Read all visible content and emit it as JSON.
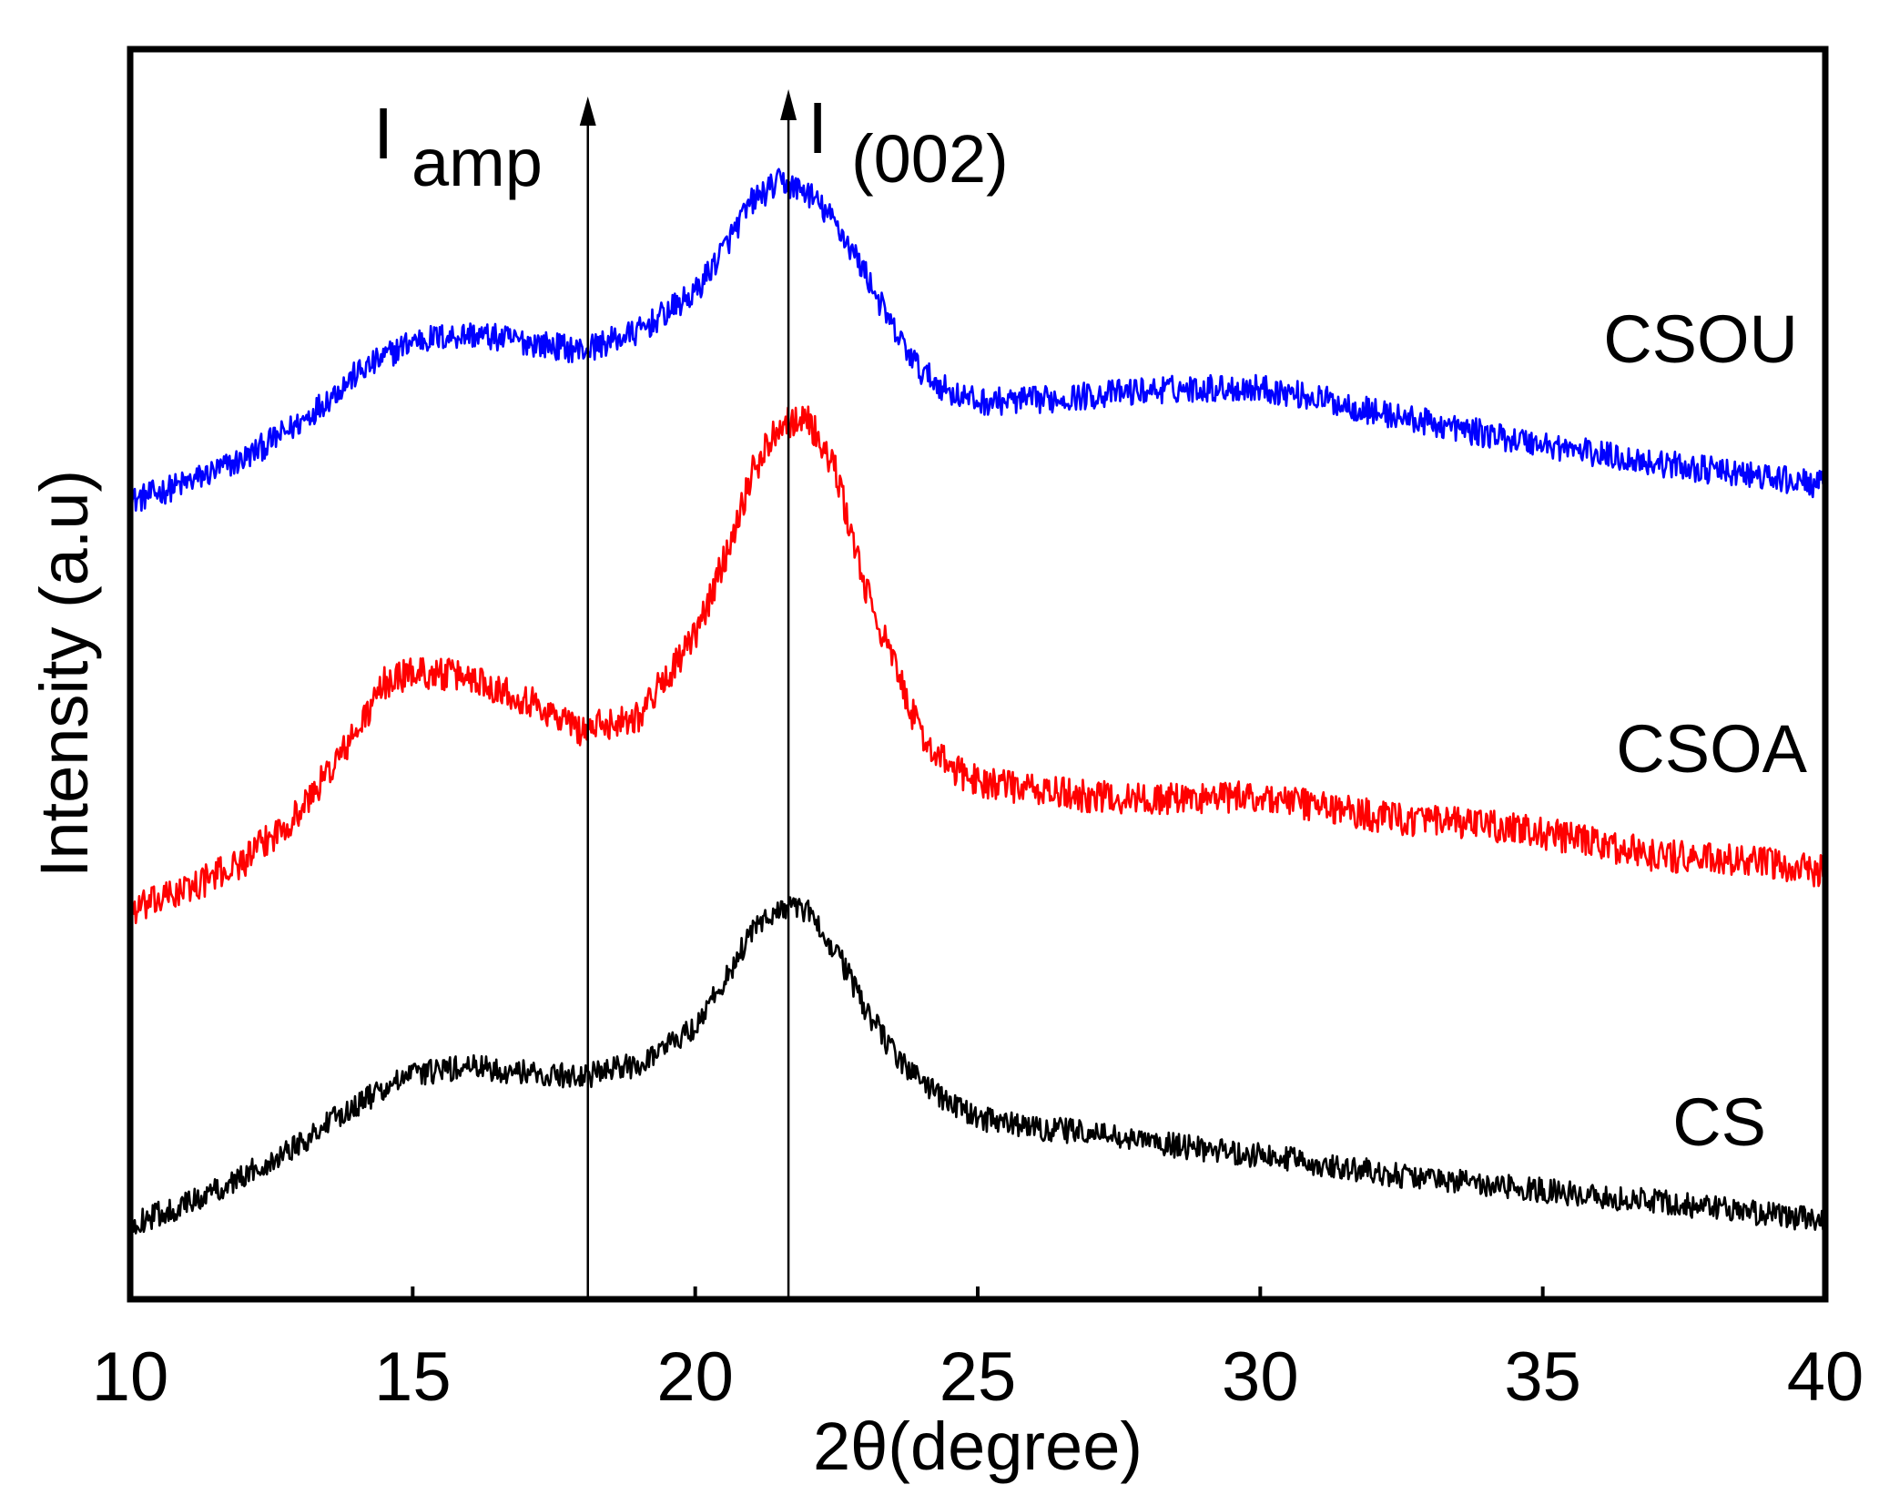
{
  "chart_data": {
    "type": "line",
    "title": "",
    "xlabel": "2θ(degree)",
    "ylabel": "Intensity (a.u)",
    "xlim": [
      10,
      40
    ],
    "ylim": [
      0,
      100
    ],
    "xticks": [
      10,
      15,
      20,
      25,
      30,
      35,
      40
    ],
    "xtick_labels": [
      "10",
      "15",
      "20",
      "25",
      "30",
      "35",
      "40"
    ],
    "grid": false,
    "legend": "inline labels at right",
    "annotations": [
      {
        "main": "I",
        "sub": "amp",
        "x": 18.1
      },
      {
        "main": "I",
        "sub": "(002)",
        "x": 21.65
      }
    ],
    "series": [
      {
        "name": "CSOU",
        "color": "#0000ff",
        "x": [
          10,
          11,
          12,
          13,
          14,
          15,
          16,
          17,
          18,
          19,
          20,
          20.5,
          21,
          21.5,
          22,
          22.5,
          23,
          23.5,
          24,
          24.5,
          25,
          26,
          27,
          28,
          29,
          30,
          31,
          32,
          33,
          34,
          35,
          36,
          37,
          38,
          39,
          40
        ],
        "y": [
          63.8,
          65.3,
          67.2,
          70.1,
          74.0,
          76.7,
          77.2,
          76.6,
          75.9,
          77.4,
          80.5,
          84.0,
          87.8,
          89.4,
          88.5,
          86.0,
          82.2,
          77.6,
          74.2,
          72.6,
          71.8,
          71.9,
          72.3,
          72.7,
          72.9,
          72.9,
          72.1,
          71.0,
          70.1,
          69.2,
          68.4,
          67.6,
          66.9,
          66.3,
          65.7,
          65.1
        ]
      },
      {
        "name": "CSOA",
        "color": "#ff0000",
        "x": [
          10,
          11,
          12,
          13,
          14,
          14.5,
          15,
          16,
          17,
          18,
          19,
          20,
          20.5,
          21,
          21.5,
          22,
          22.5,
          23,
          23.5,
          24,
          24.5,
          25,
          26,
          27,
          28,
          29,
          30,
          31,
          32,
          33,
          34,
          35,
          36,
          37,
          38,
          39,
          40
        ],
        "y": [
          31.0,
          32.8,
          35.0,
          39.0,
          45.3,
          49.3,
          50.2,
          49.8,
          48.0,
          45.5,
          46.7,
          53.0,
          59.0,
          66.0,
          70.2,
          70.4,
          66.0,
          57.0,
          51.0,
          45.0,
          42.5,
          41.5,
          40.7,
          40.2,
          40.0,
          40.1,
          40.2,
          39.5,
          38.7,
          38.2,
          37.9,
          37.3,
          36.4,
          35.5,
          35.2,
          34.8,
          34.2
        ]
      },
      {
        "name": "CS",
        "color": "#000000",
        "x": [
          10,
          11,
          12,
          13,
          14,
          15,
          16,
          17,
          18,
          19,
          20,
          20.5,
          21,
          21.5,
          22,
          22.5,
          23,
          23.5,
          24,
          24.5,
          25,
          26,
          27,
          28,
          29,
          30,
          31,
          32,
          33,
          34,
          35,
          36,
          37,
          38,
          39,
          40
        ],
        "y": [
          6.0,
          7.6,
          9.8,
          12.5,
          15.6,
          18.0,
          18.6,
          18.1,
          17.8,
          18.8,
          21.8,
          25.4,
          29.3,
          31.4,
          31.0,
          27.8,
          23.4,
          19.7,
          17.5,
          15.7,
          14.5,
          13.7,
          13.3,
          12.6,
          12.0,
          11.5,
          10.9,
          10.2,
          9.6,
          9.2,
          8.7,
          8.2,
          7.8,
          7.3,
          6.8,
          6.3
        ]
      }
    ]
  }
}
